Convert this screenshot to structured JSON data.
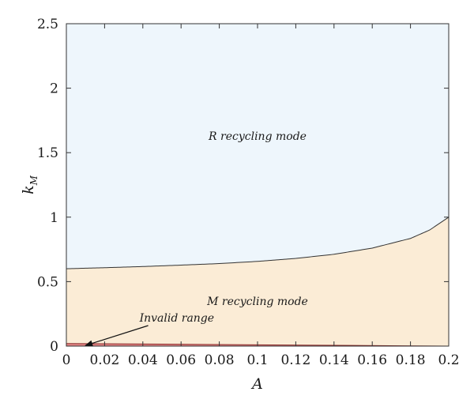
{
  "chart_data": {
    "type": "area",
    "xlabel": "A",
    "ylabel": "k",
    "ylabel_subscript": "M",
    "xlim": [
      0,
      0.2
    ],
    "ylim": [
      0,
      2.5
    ],
    "xticks": [
      "0",
      "0.02",
      "0.04",
      "0.06",
      "0.08",
      "0.1",
      "0.12",
      "0.14",
      "0.16",
      "0.18",
      "0.2"
    ],
    "yticks": [
      "0",
      "0.5",
      "1",
      "1.5",
      "2",
      "2.5"
    ],
    "grid": false,
    "boundary_curve": {
      "x": [
        0,
        0.02,
        0.04,
        0.06,
        0.08,
        0.1,
        0.12,
        0.14,
        0.16,
        0.18,
        0.19,
        0.2
      ],
      "y": [
        0.6,
        0.608,
        0.617,
        0.628,
        0.64,
        0.657,
        0.68,
        0.712,
        0.76,
        0.835,
        0.9,
        1.0
      ]
    },
    "invalid_curve": {
      "x": [
        0,
        0.05,
        0.1,
        0.15,
        0.2
      ],
      "y": [
        0.02,
        0.015,
        0.01,
        0.005,
        0.0
      ]
    },
    "regions": {
      "upper": {
        "label": "R recycling mode",
        "color": "#eef6fc"
      },
      "lower": {
        "label": "M recycling mode",
        "color": "#fbecd6"
      },
      "invalid": {
        "label": "Invalid range",
        "color": "#e38686"
      }
    },
    "annotations": [
      {
        "text": "R recycling mode",
        "x": 0.1,
        "y": 1.6
      },
      {
        "text": "M recycling mode",
        "x": 0.1,
        "y": 0.32
      },
      {
        "text": "Invalid range",
        "x": 0.0395,
        "y": 0.19,
        "arrow_to": [
          0.01,
          0.005
        ]
      }
    ],
    "colors": {
      "boundary_line": "#333333",
      "invalid_line": "#8a2a2a"
    }
  }
}
